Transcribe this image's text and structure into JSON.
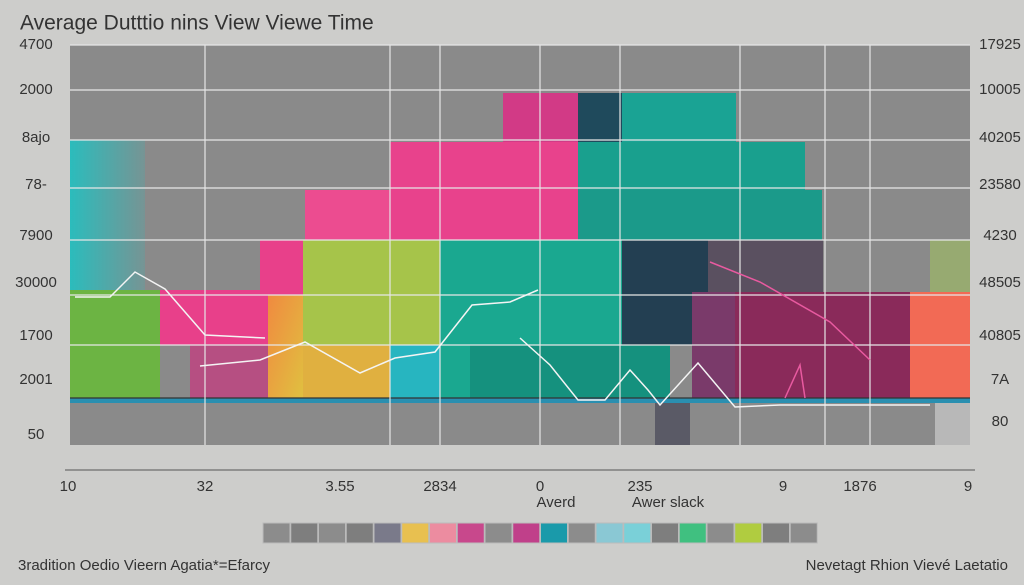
{
  "title": "Average Dutttio nins View Viewe Time",
  "left_axis_labels": [
    "4700",
    "2000",
    "8ajo",
    "78-",
    "7900",
    "30000",
    "1700",
    "2001",
    "50"
  ],
  "right_axis_labels": [
    "17925",
    "10005",
    "40205",
    "23580",
    "4230",
    "48505",
    "40805",
    "7A",
    "80"
  ],
  "x_axis_labels": [
    "10",
    "32",
    "3.55",
    "2834",
    "0",
    "235",
    "9",
    "1876",
    "9"
  ],
  "axis_annotations": [
    "Averd",
    "Awer slack"
  ],
  "footer": {
    "left": "3radition Oedio Vieern Agatia*=Efarcy",
    "right": "Nevetagt Rhion Vievé Laetatio"
  }
}
